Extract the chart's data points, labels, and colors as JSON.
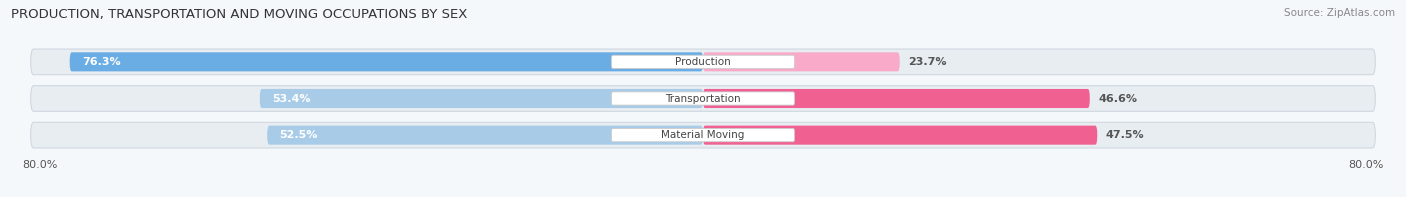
{
  "title": "PRODUCTION, TRANSPORTATION AND MOVING OCCUPATIONS BY SEX",
  "source": "Source: ZipAtlas.com",
  "categories": [
    "Production",
    "Transportation",
    "Material Moving"
  ],
  "male_values": [
    76.3,
    53.4,
    52.5
  ],
  "female_values": [
    23.7,
    46.6,
    47.5
  ],
  "male_color_strong": "#6aade4",
  "male_color_light": "#a8cce8",
  "female_color_strong": "#f06090",
  "female_color_light": "#f8aac8",
  "bar_bg_color": "#e8edf2",
  "bar_outline_color": "#d0d8e0",
  "fig_bg_color": "#f5f8fa",
  "axis_range": 80.0,
  "axis_label_left": "80.0%",
  "axis_label_right": "80.0%",
  "title_fontsize": 9.5,
  "source_fontsize": 7.5,
  "value_fontsize": 8,
  "cat_fontsize": 7.5,
  "tick_fontsize": 8
}
